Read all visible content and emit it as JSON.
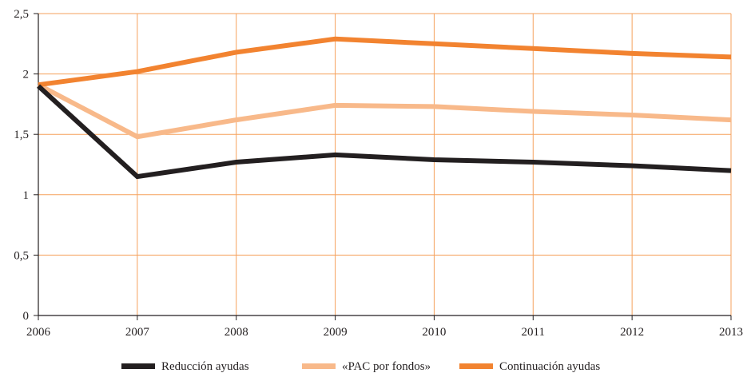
{
  "chart_data": {
    "type": "line",
    "x": [
      2006,
      2007,
      2008,
      2009,
      2010,
      2011,
      2012,
      2013
    ],
    "x_tick_labels": [
      "2006",
      "2007",
      "2008",
      "2009",
      "2010",
      "2011",
      "2012",
      "2013"
    ],
    "y_ticks": [
      0,
      0.5,
      1,
      1.5,
      2,
      2.5
    ],
    "y_tick_labels": [
      "0",
      "0,5",
      "1",
      "1,5",
      "2",
      "2,5"
    ],
    "ylim": [
      0,
      2.5
    ],
    "xlim": [
      2006,
      2013
    ],
    "grid": true,
    "legend_position": "bottom",
    "series": [
      {
        "name": "Reducción ayudas",
        "color": "#231f20",
        "values": [
          1.9,
          1.15,
          1.27,
          1.33,
          1.29,
          1.27,
          1.24,
          1.2
        ]
      },
      {
        "name": "«PAC por fondos»",
        "color": "#f8b98a",
        "values": [
          1.91,
          1.48,
          1.62,
          1.74,
          1.73,
          1.69,
          1.66,
          1.62
        ]
      },
      {
        "name": "Continuación ayudas",
        "color": "#f28330",
        "values": [
          1.91,
          2.02,
          2.18,
          2.29,
          2.25,
          2.21,
          2.17,
          2.14
        ]
      }
    ],
    "colors": {
      "grid": "#f5a15c",
      "axis": "#231f20"
    }
  }
}
